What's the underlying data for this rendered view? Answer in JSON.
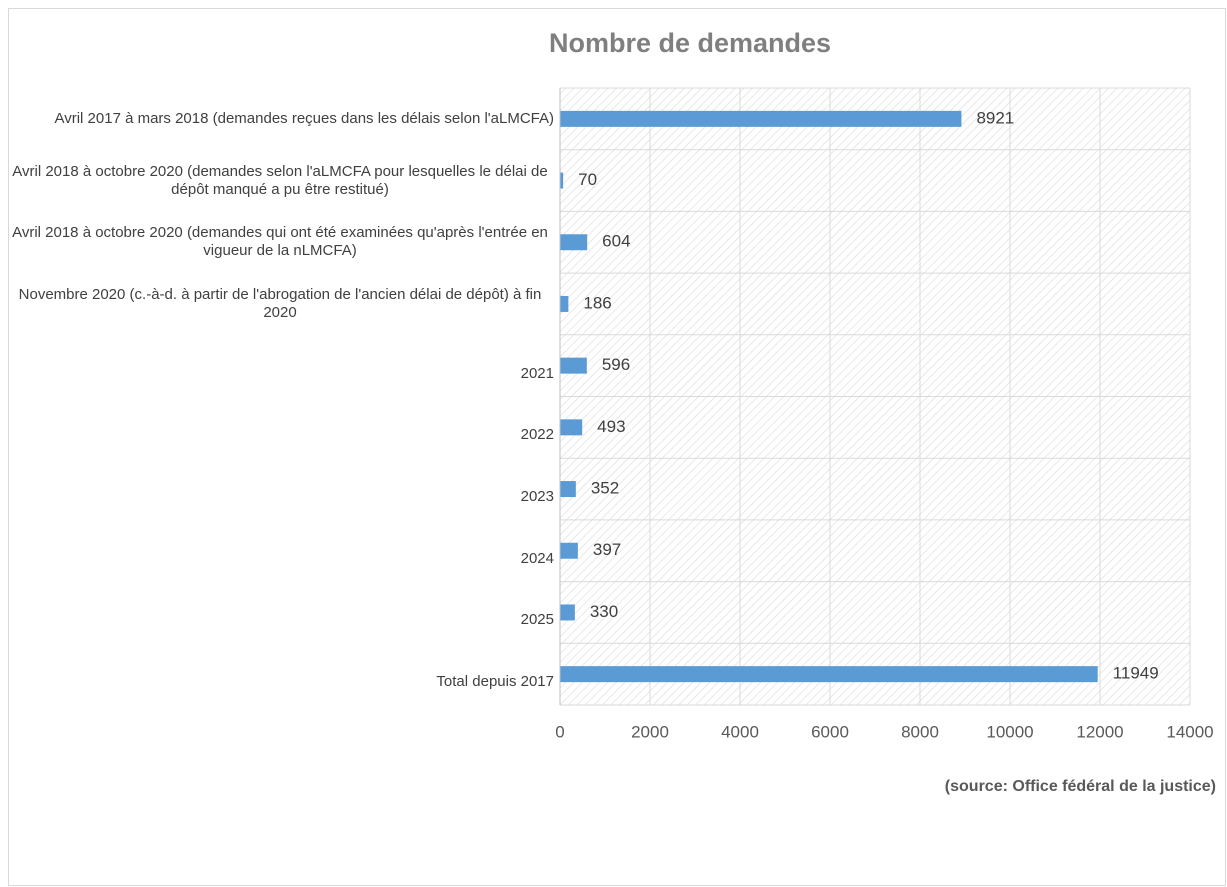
{
  "chart_data": {
    "type": "hbar",
    "title": "Nombre de demandes",
    "source": "(source: Office fédéral de la justice)",
    "categories": [
      "Avril 2017 à mars 2018 (demandes reçues dans les délais selon l'aLMCFA)",
      "Avril 2018 à octobre 2020 (demandes selon l'aLMCFA pour lesquelles le délai de dépôt manqué a pu être restitué)",
      "Avril 2018 à octobre 2020 (demandes qui ont été examinées qu'après l'entrée en vigueur de la nLMCFA)",
      "Novembre 2020 (c.-à-d. à partir de l'abrogation de l'ancien délai de dépôt) à fin 2020",
      "2021",
      "2022",
      "2023",
      "2024",
      "2025",
      "Total depuis 2017"
    ],
    "values": [
      8921,
      70,
      604,
      186,
      596,
      493,
      352,
      397,
      330,
      11949
    ],
    "color": "#5b9bd5",
    "xlim": [
      0,
      14000
    ],
    "xticks": [
      0,
      2000,
      4000,
      6000,
      8000,
      10000,
      12000,
      14000
    ],
    "grid": true
  }
}
